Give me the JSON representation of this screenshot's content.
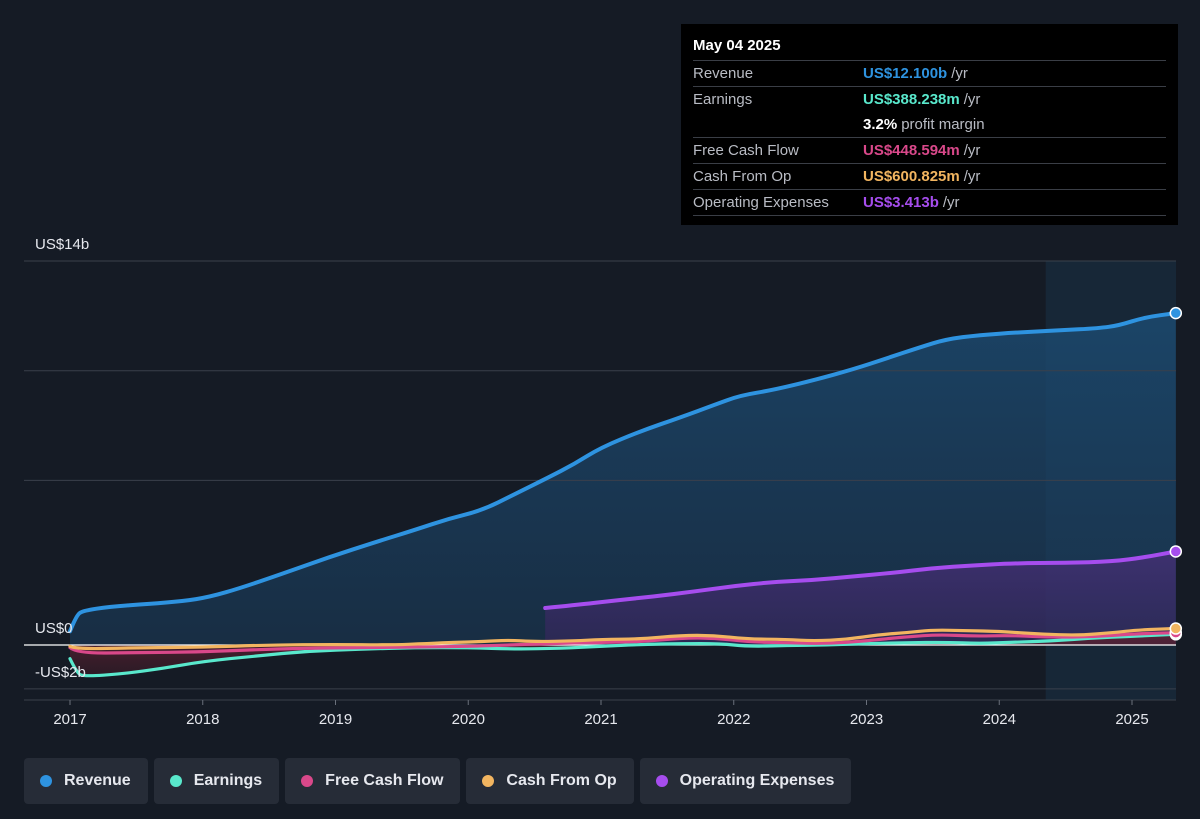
{
  "colors": {
    "revenue": "#2e93e0",
    "earnings": "#59e8cc",
    "fcf": "#d9488a",
    "cfo": "#f2b560",
    "opex": "#a64dee",
    "background": "#151b25",
    "highlight": "#193247"
  },
  "tooltip": {
    "date": "May 04 2025",
    "rows": [
      {
        "label": "Revenue",
        "value": "US$12.100b",
        "unit": "/yr",
        "color": "#2e93e0"
      },
      {
        "label": "Earnings",
        "value": "US$388.238m",
        "unit": "/yr",
        "color": "#59e8cc"
      },
      {
        "label": "",
        "value": "3.2%",
        "unit": "profit margin",
        "color": "#ffffff"
      },
      {
        "label": "Free Cash Flow",
        "value": "US$448.594m",
        "unit": "/yr",
        "color": "#d9488a"
      },
      {
        "label": "Cash From Op",
        "value": "US$600.825m",
        "unit": "/yr",
        "color": "#f2b560"
      },
      {
        "label": "Operating Expenses",
        "value": "US$3.413b",
        "unit": "/yr",
        "color": "#a64dee"
      }
    ]
  },
  "legend": [
    {
      "label": "Revenue",
      "color": "#2e93e0"
    },
    {
      "label": "Earnings",
      "color": "#59e8cc"
    },
    {
      "label": "Free Cash Flow",
      "color": "#d9488a"
    },
    {
      "label": "Cash From Op",
      "color": "#f2b560"
    },
    {
      "label": "Operating Expenses",
      "color": "#a64dee"
    }
  ],
  "chart_data": {
    "type": "area",
    "x_domain": [
      2016.9,
      2025.35
    ],
    "ylim": [
      -2,
      14
    ],
    "y_tick_labels": [
      {
        "value": 14,
        "label": "US$14b"
      },
      {
        "value": 0,
        "label": "US$0"
      },
      {
        "value": -2,
        "label": "-US$2b"
      }
    ],
    "gridlines": [
      14,
      10,
      6,
      0,
      -1.6
    ],
    "x_ticks": [
      {
        "value": 2017,
        "label": "2017"
      },
      {
        "value": 2018,
        "label": "2018"
      },
      {
        "value": 2019,
        "label": "2019"
      },
      {
        "value": 2020,
        "label": "2020"
      },
      {
        "value": 2021,
        "label": "2021"
      },
      {
        "value": 2022,
        "label": "2022"
      },
      {
        "value": 2023,
        "label": "2023"
      },
      {
        "value": 2024,
        "label": "2024"
      },
      {
        "value": 2025,
        "label": "2025"
      }
    ],
    "highlight_start": 2024.35,
    "series": [
      {
        "name": "Revenue",
        "key": "revenue",
        "points": [
          [
            2017.0,
            0.5
          ],
          [
            2017.05,
            1.1
          ],
          [
            2017.1,
            1.25
          ],
          [
            2017.3,
            1.4
          ],
          [
            2017.6,
            1.5
          ],
          [
            2017.85,
            1.6
          ],
          [
            2018.05,
            1.75
          ],
          [
            2018.3,
            2.1
          ],
          [
            2018.6,
            2.6
          ],
          [
            2018.95,
            3.2
          ],
          [
            2019.3,
            3.75
          ],
          [
            2019.6,
            4.2
          ],
          [
            2019.85,
            4.6
          ],
          [
            2020.1,
            4.9
          ],
          [
            2020.35,
            5.5
          ],
          [
            2020.6,
            6.1
          ],
          [
            2020.8,
            6.6
          ],
          [
            2021.0,
            7.2
          ],
          [
            2021.3,
            7.8
          ],
          [
            2021.6,
            8.3
          ],
          [
            2021.85,
            8.75
          ],
          [
            2022.05,
            9.1
          ],
          [
            2022.3,
            9.3
          ],
          [
            2022.6,
            9.65
          ],
          [
            2022.9,
            10.05
          ],
          [
            2023.15,
            10.45
          ],
          [
            2023.4,
            10.85
          ],
          [
            2023.6,
            11.15
          ],
          [
            2023.85,
            11.3
          ],
          [
            2024.15,
            11.4
          ],
          [
            2024.45,
            11.47
          ],
          [
            2024.75,
            11.55
          ],
          [
            2024.9,
            11.65
          ],
          [
            2025.1,
            11.95
          ],
          [
            2025.33,
            12.1
          ]
        ]
      },
      {
        "name": "Operating Expenses",
        "key": "opex",
        "points": [
          [
            2020.58,
            1.35
          ],
          [
            2020.8,
            1.45
          ],
          [
            2021.1,
            1.62
          ],
          [
            2021.4,
            1.77
          ],
          [
            2021.7,
            1.95
          ],
          [
            2022.0,
            2.15
          ],
          [
            2022.3,
            2.3
          ],
          [
            2022.6,
            2.37
          ],
          [
            2022.9,
            2.5
          ],
          [
            2023.2,
            2.63
          ],
          [
            2023.5,
            2.8
          ],
          [
            2023.8,
            2.9
          ],
          [
            2024.1,
            2.98
          ],
          [
            2024.5,
            3.0
          ],
          [
            2024.85,
            3.04
          ],
          [
            2025.1,
            3.2
          ],
          [
            2025.33,
            3.41
          ]
        ]
      },
      {
        "name": "Cash From Op",
        "key": "cfo",
        "points": [
          [
            2017.0,
            -0.05
          ],
          [
            2017.05,
            -0.15
          ],
          [
            2017.5,
            -0.1
          ],
          [
            2018.0,
            -0.08
          ],
          [
            2018.5,
            0.0
          ],
          [
            2019.0,
            0.02
          ],
          [
            2019.4,
            0.0
          ],
          [
            2019.7,
            0.05
          ],
          [
            2019.9,
            0.1
          ],
          [
            2020.1,
            0.12
          ],
          [
            2020.3,
            0.18
          ],
          [
            2020.5,
            0.12
          ],
          [
            2020.8,
            0.15
          ],
          [
            2021.0,
            0.2
          ],
          [
            2021.3,
            0.22
          ],
          [
            2021.6,
            0.35
          ],
          [
            2021.85,
            0.35
          ],
          [
            2022.1,
            0.22
          ],
          [
            2022.4,
            0.2
          ],
          [
            2022.6,
            0.15
          ],
          [
            2022.85,
            0.2
          ],
          [
            2023.1,
            0.38
          ],
          [
            2023.3,
            0.45
          ],
          [
            2023.5,
            0.55
          ],
          [
            2023.75,
            0.52
          ],
          [
            2024.0,
            0.5
          ],
          [
            2024.3,
            0.4
          ],
          [
            2024.6,
            0.35
          ],
          [
            2024.85,
            0.45
          ],
          [
            2025.05,
            0.55
          ],
          [
            2025.33,
            0.6
          ]
        ]
      },
      {
        "name": "Free Cash Flow",
        "key": "fcf",
        "points": [
          [
            2017.0,
            -0.1
          ],
          [
            2017.05,
            -0.3
          ],
          [
            2017.5,
            -0.28
          ],
          [
            2018.0,
            -0.25
          ],
          [
            2018.5,
            -0.15
          ],
          [
            2019.0,
            -0.1
          ],
          [
            2019.5,
            -0.08
          ],
          [
            2020.0,
            -0.05
          ],
          [
            2020.3,
            0.0
          ],
          [
            2020.6,
            0.05
          ],
          [
            2021.0,
            0.1
          ],
          [
            2021.3,
            0.12
          ],
          [
            2021.6,
            0.25
          ],
          [
            2021.85,
            0.26
          ],
          [
            2022.1,
            0.12
          ],
          [
            2022.4,
            0.08
          ],
          [
            2022.7,
            0.05
          ],
          [
            2023.0,
            0.15
          ],
          [
            2023.3,
            0.3
          ],
          [
            2023.55,
            0.38
          ],
          [
            2023.8,
            0.32
          ],
          [
            2024.1,
            0.35
          ],
          [
            2024.4,
            0.28
          ],
          [
            2024.7,
            0.3
          ],
          [
            2025.0,
            0.4
          ],
          [
            2025.33,
            0.45
          ]
        ]
      },
      {
        "name": "Earnings",
        "key": "earnings",
        "points": [
          [
            2017.0,
            -0.5
          ],
          [
            2017.05,
            -1.0
          ],
          [
            2017.1,
            -1.15
          ],
          [
            2017.4,
            -1.05
          ],
          [
            2017.7,
            -0.85
          ],
          [
            2018.0,
            -0.6
          ],
          [
            2018.4,
            -0.4
          ],
          [
            2018.8,
            -0.22
          ],
          [
            2019.2,
            -0.15
          ],
          [
            2019.6,
            -0.1
          ],
          [
            2020.0,
            -0.1
          ],
          [
            2020.35,
            -0.15
          ],
          [
            2020.7,
            -0.12
          ],
          [
            2021.0,
            -0.05
          ],
          [
            2021.3,
            0.02
          ],
          [
            2021.6,
            0.05
          ],
          [
            2021.9,
            0.05
          ],
          [
            2022.1,
            -0.05
          ],
          [
            2022.4,
            -0.02
          ],
          [
            2022.7,
            0.0
          ],
          [
            2023.0,
            0.05
          ],
          [
            2023.3,
            0.08
          ],
          [
            2023.6,
            0.1
          ],
          [
            2023.85,
            0.05
          ],
          [
            2024.1,
            0.1
          ],
          [
            2024.4,
            0.15
          ],
          [
            2024.7,
            0.25
          ],
          [
            2025.0,
            0.32
          ],
          [
            2025.33,
            0.39
          ]
        ]
      }
    ]
  }
}
